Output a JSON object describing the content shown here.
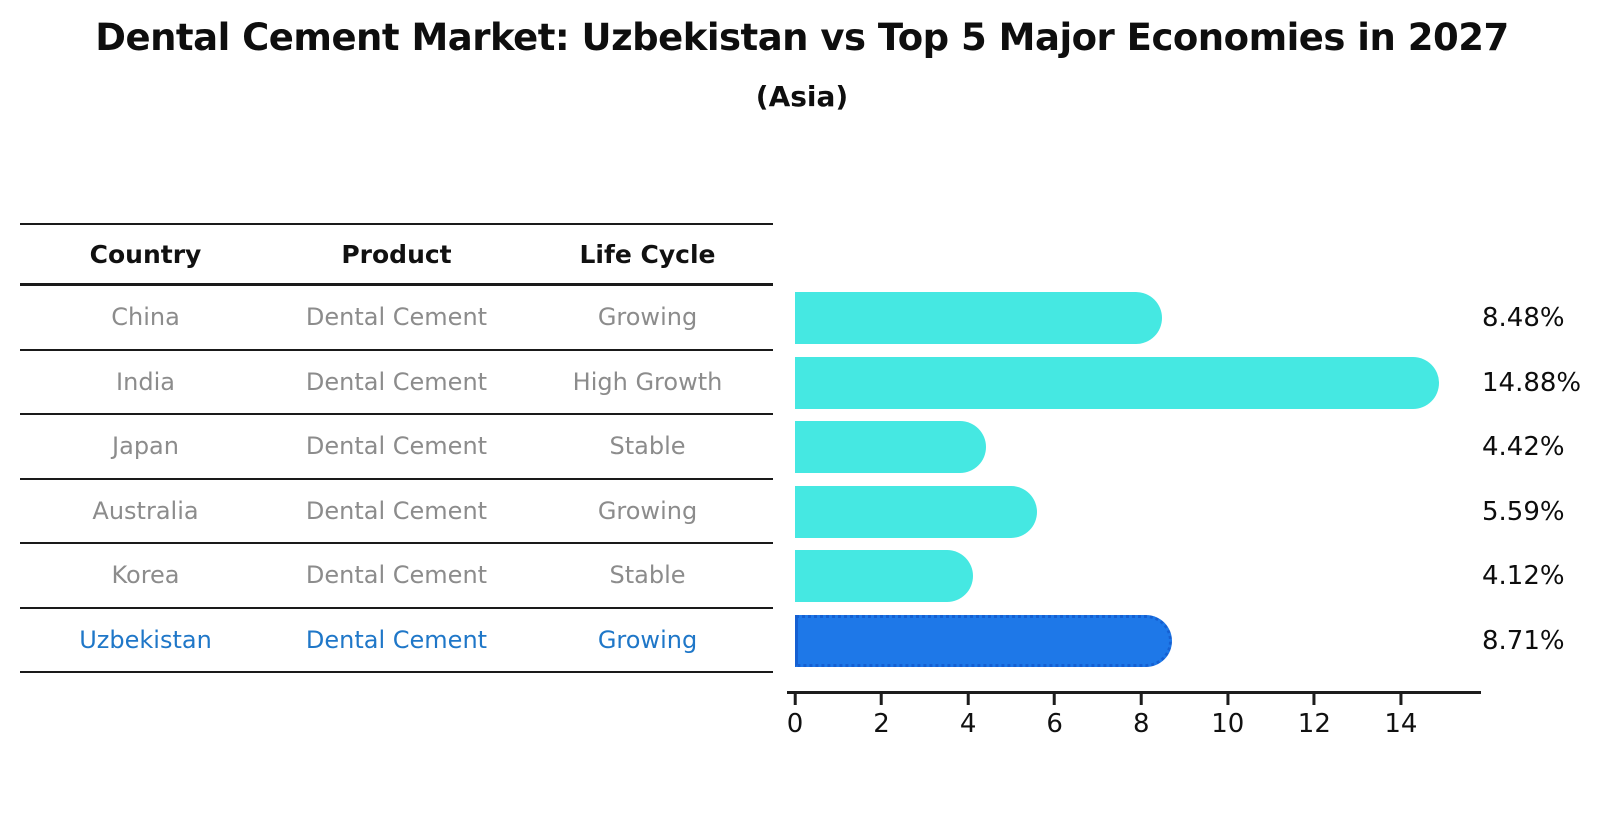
{
  "title": "Dental Cement Market: Uzbekistan vs Top 5 Major Economies in 2027",
  "subtitle": "(Asia)",
  "colors": {
    "bar_default": "#45e8e2",
    "bar_highlight": "#1e78e8",
    "highlight_text": "#1f77c8",
    "table_line": "#1a1a1a",
    "cell_text": "#8c8c8c",
    "header_text": "#111111"
  },
  "table": {
    "headers": [
      "Country",
      "Product",
      "Life Cycle"
    ],
    "rows": [
      {
        "country": "China",
        "product": "Dental Cement",
        "life_cycle": "Growing"
      },
      {
        "country": "India",
        "product": "Dental Cement",
        "life_cycle": "High Growth"
      },
      {
        "country": "Japan",
        "product": "Dental Cement",
        "life_cycle": "Stable"
      },
      {
        "country": "Australia",
        "product": "Dental Cement",
        "life_cycle": "Growing"
      },
      {
        "country": "Korea",
        "product": "Dental Cement",
        "life_cycle": "Stable"
      },
      {
        "country": "Uzbekistan",
        "product": "Dental Cement",
        "life_cycle": "Growing"
      }
    ]
  },
  "chart_data": {
    "type": "bar",
    "orientation": "horizontal",
    "title": "Dental Cement Market: Uzbekistan vs Top 5 Major Economies in 2027",
    "subtitle": "(Asia)",
    "categories": [
      "China",
      "India",
      "Japan",
      "Australia",
      "Korea",
      "Uzbekistan"
    ],
    "values": [
      8.48,
      14.88,
      4.42,
      5.59,
      4.12,
      8.71
    ],
    "value_labels": [
      "8.48%",
      "14.88%",
      "4.42%",
      "5.59%",
      "4.12%",
      "8.71%"
    ],
    "highlight_index": 5,
    "x_ticks": [
      0,
      2,
      4,
      6,
      8,
      10,
      12,
      14
    ],
    "xlim": [
      0,
      15.62
    ],
    "xlabel": "",
    "ylabel": "",
    "grid": false,
    "legend": false
  }
}
